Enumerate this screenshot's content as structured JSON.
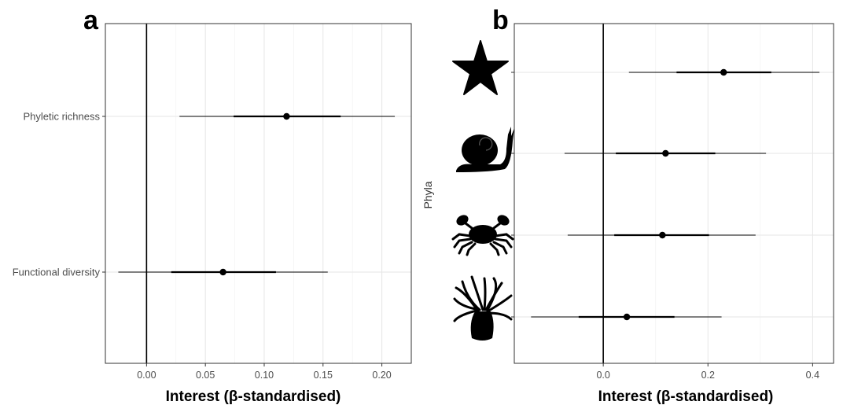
{
  "chart_data": [
    {
      "panel": "a",
      "type": "forest",
      "xlabel": "Interest (β-standardised)",
      "ylabel": "",
      "xlim": [
        -0.035,
        0.225
      ],
      "xticks": [
        0.0,
        0.05,
        0.1,
        0.15,
        0.2
      ],
      "xtick_labels": [
        "0.00",
        "0.05",
        "0.10",
        "0.15",
        "0.20"
      ],
      "reference_line": 0,
      "grid": true,
      "categories": [
        "Phyletic richness",
        "Functional diversity"
      ],
      "series": [
        {
          "estimates": [
            0.119,
            0.065
          ],
          "inner_low": [
            0.074,
            0.021
          ],
          "inner_high": [
            0.165,
            0.11
          ],
          "outer_low": [
            0.028,
            -0.024
          ],
          "outer_high": [
            0.211,
            0.154
          ]
        }
      ]
    },
    {
      "panel": "b",
      "type": "forest",
      "xlabel": "Interest (β-standardised)",
      "ylabel": "Phyla",
      "xlim": [
        -0.17,
        0.44
      ],
      "xticks": [
        0.0,
        0.2,
        0.4
      ],
      "xtick_labels": [
        "0.0",
        "0.2",
        "0.4"
      ],
      "reference_line": 0,
      "grid": true,
      "categories": [
        "starfish-icon",
        "snail-icon",
        "crab-icon",
        "anemone-icon"
      ],
      "series": [
        {
          "estimates": [
            0.23,
            0.119,
            0.113,
            0.045
          ],
          "inner_low": [
            0.14,
            0.024,
            0.021,
            -0.047
          ],
          "inner_high": [
            0.321,
            0.214,
            0.202,
            0.136
          ],
          "outer_low": [
            0.049,
            -0.074,
            -0.068,
            -0.138
          ],
          "outer_high": [
            0.413,
            0.311,
            0.291,
            0.226
          ]
        }
      ]
    }
  ]
}
